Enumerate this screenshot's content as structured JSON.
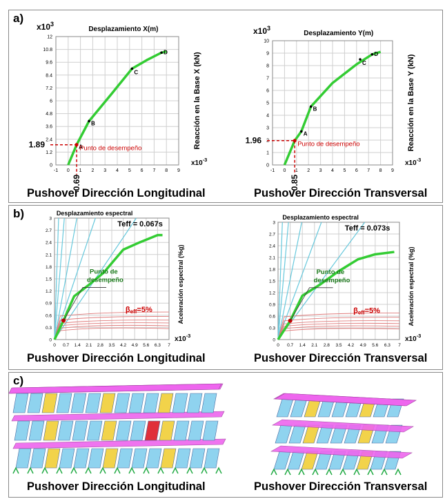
{
  "panels": {
    "a": "a)",
    "b": "b)",
    "c": "c)"
  },
  "captions": {
    "longitudinal": "Pushover  Dirección Longitudinal",
    "transversal": "Pushover  Dirección Transversal"
  },
  "common": {
    "x_exponent": "x10",
    "x_exponent_power": "-3",
    "y_exponent": "x10",
    "y_exponent_power": "3",
    "perf_point_label": "Punto de desempeño",
    "beta_label": "β",
    "beta_sub": "eff",
    "beta_value": "=5%",
    "perf_point_label_l1": "Punto de",
    "perf_point_label_l2": "desempeño"
  },
  "colors": {
    "curve": "#33cc33",
    "perf": "#cc0000",
    "radial": "#66c8dc",
    "grid": "#cfcfcf",
    "demand": "#e07a7a",
    "mesh_column": "#8fd3ef",
    "mesh_slab": "#ee66ee",
    "mesh_accent": "#f2d34a",
    "mesh_support": "#22aa44"
  },
  "chart_data": [
    {
      "id": "a-long",
      "type": "line",
      "title": "Desplazamiento X(m)",
      "ylabel": "Reacción en la Base X (kN)",
      "xlim": [
        -1,
        9
      ],
      "ylim": [
        0,
        12
      ],
      "xticks": [
        "-1",
        "0",
        "1",
        "2",
        "3",
        "4",
        "5",
        "6",
        "7",
        "8",
        "9"
      ],
      "yticks": [
        "0",
        "1.2",
        "2.4",
        "3.6",
        "4.8",
        "6",
        "7.2",
        "8.4",
        "9.6",
        "10.8",
        "12"
      ],
      "series": [
        {
          "x": [
            0,
            0.69,
            1.7,
            3.5,
            5.2,
            6.4,
            7.6,
            8.0
          ],
          "y": [
            0,
            1.89,
            4.1,
            6.6,
            9.0,
            9.8,
            10.5,
            10.6
          ]
        }
      ],
      "points": [
        {
          "label": "A",
          "x": 0.69,
          "y": 1.89
        },
        {
          "label": "B",
          "x": 1.7,
          "y": 4.1
        },
        {
          "label": "C",
          "x": 5.2,
          "y": 9.0
        },
        {
          "label": "D",
          "x": 7.6,
          "y": 10.5
        }
      ],
      "performance": {
        "x": 0.69,
        "y": 1.89,
        "xlabel": "0.69",
        "ylabel": "1.89"
      }
    },
    {
      "id": "a-trans",
      "type": "line",
      "title": "Desplazamiento  Y(m)",
      "ylabel": "Reacción en la Base Y (kN)",
      "xlim": [
        -1,
        9
      ],
      "ylim": [
        0,
        10
      ],
      "xticks": [
        "-1",
        "0",
        "1",
        "2",
        "3",
        "4",
        "5",
        "6",
        "7",
        "8",
        "9"
      ],
      "yticks": [
        "0",
        "1",
        "2",
        "3",
        "4",
        "5",
        "6",
        "7",
        "8",
        "9",
        "10"
      ],
      "series": [
        {
          "x": [
            0,
            0.85,
            1.4,
            2.2,
            4.0,
            6.0,
            7.3,
            8.0
          ],
          "y": [
            0,
            1.96,
            2.7,
            4.7,
            6.6,
            8.1,
            8.9,
            9.1
          ]
        }
      ],
      "points": [
        {
          "label": "A",
          "x": 1.4,
          "y": 2.7
        },
        {
          "label": "B",
          "x": 2.2,
          "y": 4.7
        },
        {
          "label": "C",
          "x": 6.3,
          "y": 8.5
        },
        {
          "label": "D",
          "x": 7.3,
          "y": 8.9
        }
      ],
      "performance": {
        "x": 0.85,
        "y": 1.96,
        "xlabel": "0.85",
        "ylabel": "1.96"
      }
    },
    {
      "id": "b-long",
      "type": "line",
      "title": "Desplazamiento espectral",
      "ylabel": "Aceleración espectral (%g)",
      "xlim": [
        0,
        7
      ],
      "ylim": [
        0,
        3
      ],
      "xticks": [
        "0",
        "0.7",
        "1.4",
        "2.1",
        "2.8",
        "3.5",
        "4.2",
        "4.9",
        "5.6",
        "6.3",
        "7"
      ],
      "yticks": [
        "0",
        "0.3",
        "0.6",
        "0.9",
        "1.2",
        "1.5",
        "1.8",
        "2.1",
        "2.4",
        "2.7",
        "3"
      ],
      "teff": "Teff = 0.067s",
      "series": [
        {
          "x": [
            0,
            0.55,
            1.2,
            2.1,
            3.0,
            4.2,
            5.2,
            6.3,
            6.6
          ],
          "y": [
            0,
            0.47,
            1.07,
            1.35,
            1.65,
            2.22,
            2.4,
            2.58,
            2.58
          ]
        }
      ],
      "performance": {
        "x": 0.55,
        "y": 0.47
      }
    },
    {
      "id": "b-trans",
      "type": "line",
      "title": "Desplazamiento espectral",
      "ylabel": "Aceleración espectral (%g)",
      "xlim": [
        0,
        7
      ],
      "ylim": [
        0,
        3
      ],
      "xticks": [
        "0",
        "0.7",
        "1.4",
        "2.1",
        "2.8",
        "3.5",
        "4.2",
        "4.9",
        "5.6",
        "6.3",
        "7"
      ],
      "yticks": [
        "0",
        "0.3",
        "0.6",
        "0.9",
        "1.2",
        "1.5",
        "1.8",
        "2.1",
        "2.4",
        "2.7",
        "3"
      ],
      "teff": "Teff = 0.073s",
      "series": [
        {
          "x": [
            0,
            0.7,
            1.4,
            2.4,
            3.5,
            4.6,
            5.6,
            6.7
          ],
          "y": [
            0,
            0.48,
            1.12,
            1.4,
            1.75,
            2.05,
            2.18,
            2.24
          ]
        }
      ],
      "performance": {
        "x": 0.7,
        "y": 0.48
      }
    }
  ]
}
